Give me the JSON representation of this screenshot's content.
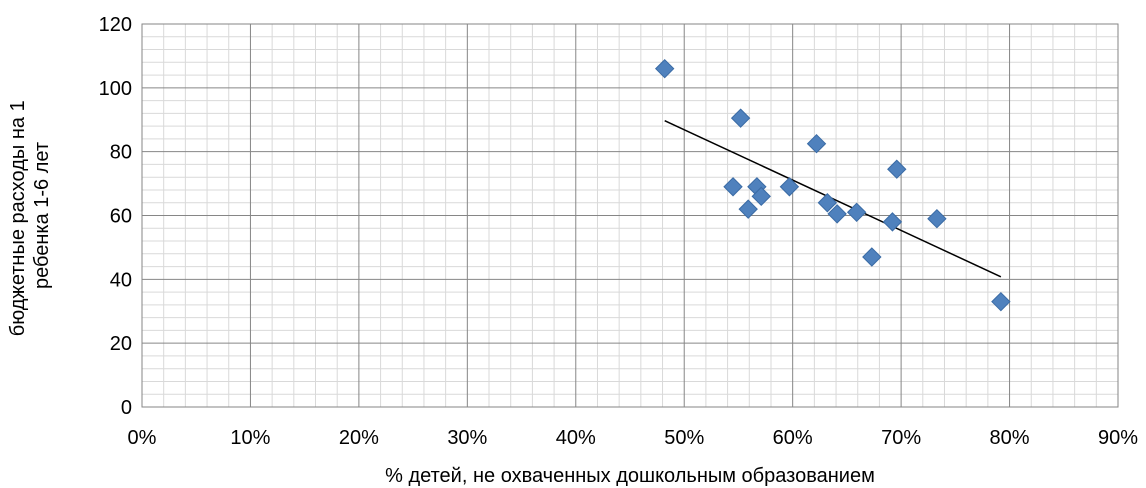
{
  "chart_data": {
    "type": "scatter",
    "xlabel": "% детей, не охваченных дошкольным образованием",
    "ylabel_line1": "бюджетные расходы на 1",
    "ylabel_line2": "ребенка 1-6 лет",
    "xlim": [
      0,
      0.9
    ],
    "ylim": [
      0,
      120
    ],
    "x_ticks": [
      0,
      0.1,
      0.2,
      0.3,
      0.4,
      0.5,
      0.6,
      0.7,
      0.8,
      0.9
    ],
    "x_tick_labels": [
      "0%",
      "10%",
      "20%",
      "30%",
      "40%",
      "50%",
      "60%",
      "70%",
      "80%",
      "90%"
    ],
    "y_ticks": [
      0,
      20,
      40,
      60,
      80,
      100,
      120
    ],
    "y_tick_labels": [
      "0",
      "20",
      "40",
      "60",
      "80",
      "100",
      "120"
    ],
    "grid": true,
    "grid_minor": true,
    "legend": "none",
    "marker": "diamond",
    "marker_color": "#4F81BD",
    "trendline_color": "#000000",
    "points": [
      {
        "x": 0.482,
        "y": 106
      },
      {
        "x": 0.552,
        "y": 90.5
      },
      {
        "x": 0.622,
        "y": 82.5
      },
      {
        "x": 0.696,
        "y": 74.5
      },
      {
        "x": 0.545,
        "y": 69
      },
      {
        "x": 0.567,
        "y": 69
      },
      {
        "x": 0.597,
        "y": 69
      },
      {
        "x": 0.571,
        "y": 66
      },
      {
        "x": 0.632,
        "y": 64
      },
      {
        "x": 0.559,
        "y": 62
      },
      {
        "x": 0.659,
        "y": 61
      },
      {
        "x": 0.641,
        "y": 60.5
      },
      {
        "x": 0.733,
        "y": 59
      },
      {
        "x": 0.692,
        "y": 58
      },
      {
        "x": 0.673,
        "y": 47
      },
      {
        "x": 0.792,
        "y": 33
      }
    ],
    "trendline": {
      "x": [
        0.482,
        0.792
      ],
      "y": [
        89.7,
        40.8
      ]
    }
  }
}
